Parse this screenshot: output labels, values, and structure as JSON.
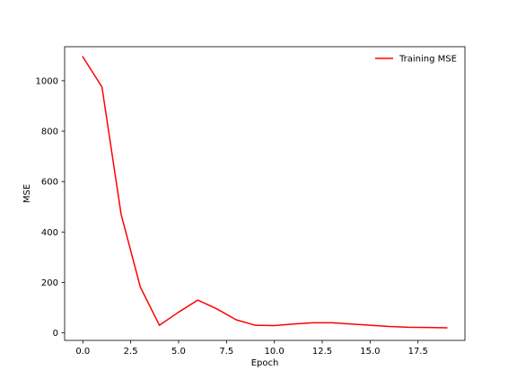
{
  "chart_data": {
    "type": "line",
    "title": "",
    "xlabel": "Epoch",
    "ylabel": "MSE",
    "xlim": [
      -0.95,
      19.95
    ],
    "ylim": [
      -30,
      1135
    ],
    "xticks": [
      0,
      2.5,
      5,
      7.5,
      10,
      12.5,
      15,
      17.5
    ],
    "xtick_labels": [
      "0.0",
      "2.5",
      "5.0",
      "7.5",
      "10.0",
      "12.5",
      "15.0",
      "17.5"
    ],
    "yticks": [
      0,
      200,
      400,
      600,
      800,
      1000
    ],
    "ytick_labels": [
      "0",
      "200",
      "400",
      "600",
      "800",
      "1000"
    ],
    "grid": false,
    "legend_position": "top-right",
    "series": [
      {
        "name": "Training MSE",
        "color": "#ff0000",
        "x": [
          0,
          1,
          2,
          3,
          4,
          5,
          6,
          7,
          8,
          9,
          10,
          11,
          12,
          13,
          14,
          15,
          16,
          17,
          18,
          19
        ],
        "y": [
          1095,
          975,
          470,
          182,
          30,
          82,
          130,
          95,
          52,
          30,
          29,
          35,
          40,
          40,
          35,
          30,
          25,
          22,
          21,
          20
        ]
      }
    ]
  }
}
